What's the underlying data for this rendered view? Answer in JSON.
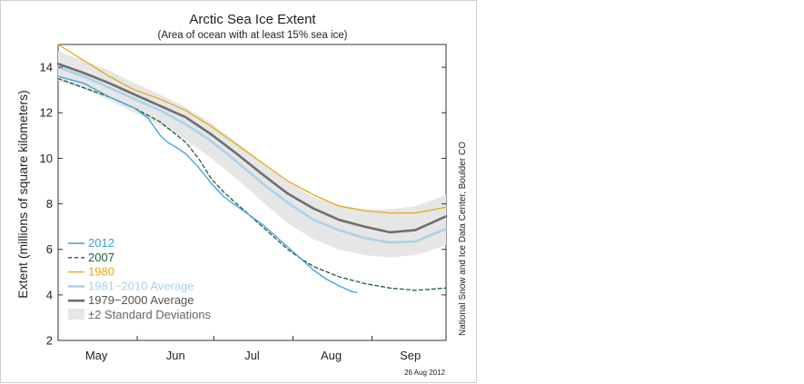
{
  "chart_data": {
    "type": "line",
    "title": "Arctic Sea Ice Extent",
    "subtitle": "(Area of ocean with at least 15% sea ice)",
    "ylabel": "Extent (millions of square kilometers)",
    "xlabel": "",
    "ylim": [
      2,
      15
    ],
    "yticks": [
      "2",
      "4",
      "6",
      "8",
      "10",
      "12",
      "14"
    ],
    "ytick_values": [
      2,
      4,
      6,
      8,
      10,
      12,
      14
    ],
    "xlim": [
      0,
      152
    ],
    "month_labels": [
      "May",
      "Jun",
      "Jul",
      "Aug",
      "Sep"
    ],
    "month_label_days": [
      15,
      46,
      76,
      107,
      138
    ],
    "grid": false,
    "legend_position": "lower-left",
    "credit": "National Snow and Ice Data Center, Boulder CO",
    "date_stamp": "26 Aug 2012",
    "band": {
      "name": "±2 Standard Deviations",
      "color": "#e6e6e6",
      "x": [
        0,
        10,
        20,
        30,
        40,
        50,
        60,
        70,
        80,
        90,
        100,
        110,
        120,
        130,
        140,
        150,
        152
      ],
      "upper": [
        14.7,
        14.3,
        13.85,
        13.3,
        12.8,
        12.25,
        11.55,
        10.7,
        9.8,
        8.95,
        8.3,
        7.95,
        7.75,
        7.75,
        7.9,
        8.3,
        8.4
      ],
      "lower": [
        13.4,
        13.05,
        12.55,
        12.0,
        11.45,
        10.8,
        10.0,
        9.1,
        8.1,
        7.15,
        6.45,
        6.0,
        5.75,
        5.65,
        5.75,
        6.1,
        6.2
      ]
    },
    "series": [
      {
        "name": "2012",
        "color": "#3aa0d8",
        "style": "solid",
        "x": [
          0,
          5,
          10,
          15,
          20,
          25,
          30,
          35,
          40,
          43,
          46,
          50,
          55,
          60,
          65,
          70,
          75,
          80,
          85,
          90,
          95,
          100,
          105,
          110,
          115,
          117
        ],
        "y": [
          13.6,
          13.45,
          13.3,
          13.0,
          12.7,
          12.45,
          12.2,
          11.8,
          11.0,
          10.7,
          10.5,
          10.2,
          9.6,
          8.9,
          8.3,
          7.9,
          7.5,
          7.1,
          6.6,
          6.1,
          5.6,
          5.1,
          4.7,
          4.4,
          4.15,
          4.1
        ]
      },
      {
        "name": "2007",
        "color": "#1e5e3a",
        "style": "dashed",
        "x": [
          0,
          10,
          20,
          30,
          40,
          50,
          55,
          60,
          65,
          70,
          75,
          80,
          85,
          90,
          95,
          100,
          110,
          120,
          130,
          140,
          152
        ],
        "y": [
          13.5,
          13.1,
          12.7,
          12.2,
          11.6,
          10.7,
          10.0,
          9.1,
          8.5,
          8.0,
          7.5,
          7.0,
          6.5,
          6.0,
          5.6,
          5.25,
          4.8,
          4.5,
          4.3,
          4.2,
          4.3
        ]
      },
      {
        "name": "1980",
        "color": "#e6aa16",
        "style": "solid",
        "x": [
          0,
          10,
          20,
          30,
          40,
          50,
          60,
          70,
          80,
          90,
          100,
          110,
          120,
          130,
          140,
          152
        ],
        "y": [
          15.0,
          14.3,
          13.6,
          13.0,
          12.6,
          12.1,
          11.4,
          10.6,
          9.8,
          9.0,
          8.4,
          7.9,
          7.7,
          7.6,
          7.6,
          7.85
        ]
      },
      {
        "name": "1981−2010 Average",
        "color": "#a9d3ea",
        "style": "solid",
        "x": [
          0,
          10,
          20,
          30,
          40,
          50,
          60,
          70,
          80,
          90,
          100,
          110,
          120,
          130,
          140,
          152
        ],
        "y": [
          14.0,
          13.6,
          13.1,
          12.6,
          12.1,
          11.5,
          10.75,
          9.85,
          8.9,
          8.05,
          7.3,
          6.85,
          6.5,
          6.3,
          6.35,
          6.9
        ]
      },
      {
        "name": "1979−2000 Average",
        "color": "#6e6e6e",
        "style": "solid",
        "x": [
          0,
          10,
          20,
          30,
          40,
          50,
          60,
          70,
          80,
          90,
          100,
          110,
          120,
          130,
          140,
          152
        ],
        "y": [
          14.15,
          13.75,
          13.3,
          12.8,
          12.3,
          11.8,
          11.05,
          10.2,
          9.3,
          8.45,
          7.8,
          7.3,
          7.0,
          6.75,
          6.85,
          7.45
        ]
      }
    ]
  }
}
